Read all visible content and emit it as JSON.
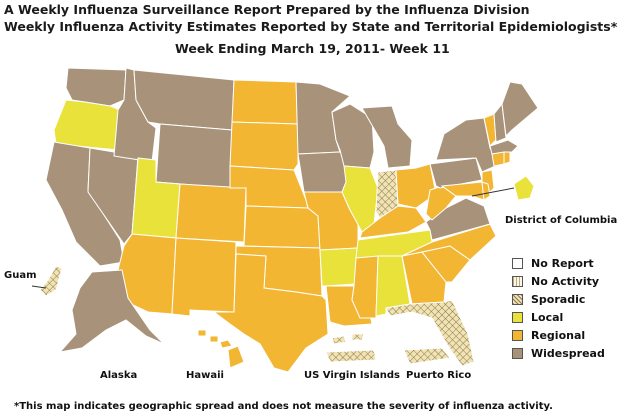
{
  "title_line1": "A Weekly Influenza Surveillance Report Prepared by the Influenza Division",
  "title_line2": "Weekly Influenza Activity Estimates Reported by State and Territorial Epidemiologists*",
  "week_line": "Week Ending March 19, 2011- Week 11",
  "footnote": "*This map indicates geographic spread and does not measure the severity of influenza activity.",
  "colors": {
    "no_report": "#ffffff",
    "no_activity": "#fdf6e3",
    "sporadic": "#f2e3b3",
    "local": "#e8e23a",
    "regional": "#f2b632",
    "widespread": "#a8937a",
    "border": "#ffffff"
  },
  "legend": [
    {
      "label": "No Report",
      "key": "no_report"
    },
    {
      "label": "No Activity",
      "key": "no_activity"
    },
    {
      "label": "Sporadic",
      "key": "sporadic"
    },
    {
      "label": "Local",
      "key": "local"
    },
    {
      "label": "Regional",
      "key": "regional"
    },
    {
      "label": "Widespread",
      "key": "widespread"
    }
  ],
  "labels": {
    "dc": "District of Columbia",
    "guam": "Guam",
    "alaska": "Alaska",
    "hawaii": "Hawaii",
    "usvi": "US Virgin Islands",
    "pr": "Puerto Rico"
  },
  "activity": {
    "WA": "widespread",
    "OR": "local",
    "CA": "widespread",
    "NV": "widespread",
    "ID": "widespread",
    "MT": "widespread",
    "WY": "widespread",
    "UT": "local",
    "AZ": "regional",
    "CO": "regional",
    "NM": "regional",
    "ND": "regional",
    "SD": "regional",
    "NE": "regional",
    "KS": "regional",
    "OK": "regional",
    "TX": "regional",
    "MN": "widespread",
    "IA": "widespread",
    "MO": "regional",
    "AR": "local",
    "LA": "regional",
    "WI": "widespread",
    "IL": "local",
    "MI": "widespread",
    "IN": "sporadic",
    "OH": "regional",
    "KY": "regional",
    "TN": "local",
    "MS": "regional",
    "AL": "local",
    "GA": "regional",
    "FL": "sporadic",
    "SC": "regional",
    "NC": "regional",
    "VA": "widespread",
    "WV": "regional",
    "PA": "widespread",
    "NY": "widespread",
    "NJ": "regional",
    "DE": "regional",
    "MD": "regional",
    "DC": "local",
    "CT": "regional",
    "RI": "regional",
    "MA": "widespread",
    "VT": "regional",
    "NH": "widespread",
    "ME": "widespread",
    "AK": "widespread",
    "HI": "regional",
    "GU": "sporadic",
    "VI": "sporadic",
    "PR": "sporadic"
  }
}
